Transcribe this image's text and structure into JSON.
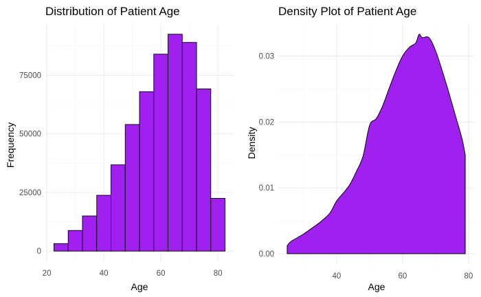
{
  "colors": {
    "fill": "#a020f0",
    "outline": "#000000",
    "grid": "#ebebeb",
    "tick_text": "#4d4d4d"
  },
  "chart_data": [
    {
      "type": "bar",
      "title": "Distribution of Patient Age",
      "xlabel": "Age",
      "ylabel": "Frequency",
      "bin_width": 5,
      "bins": [
        {
          "x0": 22.5,
          "x1": 27.5,
          "count": 3200
        },
        {
          "x0": 27.5,
          "x1": 32.5,
          "count": 8800
        },
        {
          "x0": 32.5,
          "x1": 37.5,
          "count": 15000
        },
        {
          "x0": 37.5,
          "x1": 42.5,
          "count": 23800
        },
        {
          "x0": 42.5,
          "x1": 47.5,
          "count": 36800
        },
        {
          "x0": 47.5,
          "x1": 52.5,
          "count": 54000
        },
        {
          "x0": 52.5,
          "x1": 57.5,
          "count": 68000
        },
        {
          "x0": 57.5,
          "x1": 62.5,
          "count": 84000
        },
        {
          "x0": 62.5,
          "x1": 67.5,
          "count": 92500
        },
        {
          "x0": 67.5,
          "x1": 72.5,
          "count": 89000
        },
        {
          "x0": 72.5,
          "x1": 77.5,
          "count": 69200
        },
        {
          "x0": 77.5,
          "x1": 82.5,
          "count": 22500
        }
      ],
      "xlim": [
        19.5,
        85.5
      ],
      "ylim": [
        -4625,
        97125
      ],
      "x_ticks": [
        20,
        40,
        60,
        80
      ],
      "y_ticks": [
        0,
        25000,
        50000,
        75000
      ],
      "y_tick_labels": [
        "0",
        "25000",
        "50000",
        "75000"
      ],
      "grid": true
    },
    {
      "type": "area",
      "title": "Density Plot of Patient Age",
      "xlabel": "Age",
      "ylabel": "Density",
      "x": [
        25,
        26,
        28,
        30,
        32,
        34,
        36,
        38,
        40,
        42,
        44,
        46,
        48,
        50,
        52,
        54,
        56,
        58,
        60,
        62,
        64,
        65,
        66,
        68,
        70,
        72,
        74,
        76,
        78,
        79
      ],
      "y": [
        0.0012,
        0.0018,
        0.0024,
        0.003,
        0.0037,
        0.0044,
        0.0052,
        0.0062,
        0.008,
        0.0092,
        0.0105,
        0.0125,
        0.0148,
        0.0195,
        0.0205,
        0.0225,
        0.0252,
        0.0278,
        0.03,
        0.0313,
        0.032,
        0.0333,
        0.0328,
        0.0328,
        0.0308,
        0.0278,
        0.0245,
        0.021,
        0.0175,
        0.015
      ],
      "xlim": [
        22.3,
        81.7
      ],
      "ylim": [
        -0.00167,
        0.03496
      ],
      "x_ticks": [
        40,
        60,
        80
      ],
      "y_ticks": [
        0,
        0.01,
        0.02,
        0.03
      ],
      "y_tick_labels": [
        "0.00",
        "0.01",
        "0.02",
        "0.03"
      ],
      "grid": true
    }
  ]
}
